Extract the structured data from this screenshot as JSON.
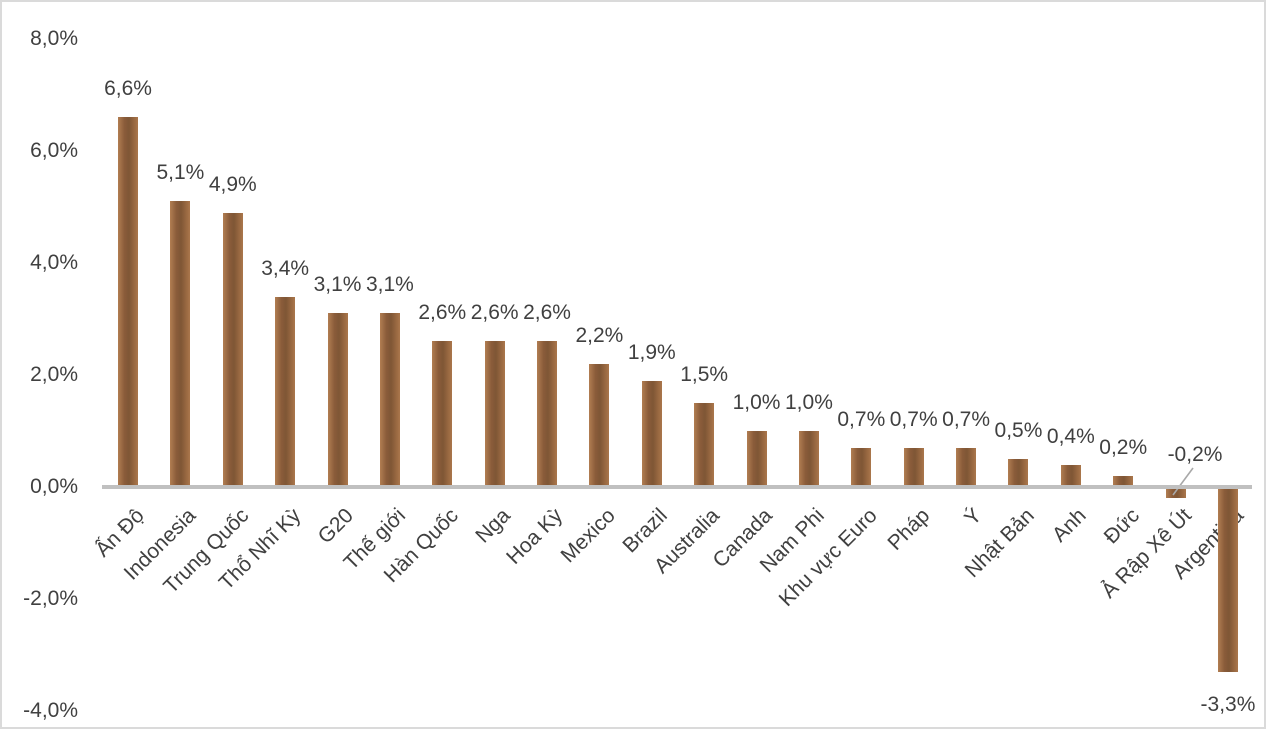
{
  "chart_data": {
    "type": "bar",
    "title": "",
    "xlabel": "",
    "ylabel": "",
    "legend": "none",
    "grid": "off",
    "categories": [
      "Ấn Độ",
      "Indonesia",
      "Trung Quốc",
      "Thổ Nhĩ Kỳ",
      "G20",
      "Thế giới",
      "Hàn Quốc",
      "Nga",
      "Hoa Kỳ",
      "Mexico",
      "Brazil",
      "Australia",
      "Canada",
      "Nam Phi",
      "Khu vực Euro",
      "Pháp",
      "Ý",
      "Nhật Bản",
      "Anh",
      "Đức",
      "Ả Rập Xê Út",
      "Argentina"
    ],
    "values": [
      6.6,
      5.1,
      4.9,
      3.4,
      3.1,
      3.1,
      2.6,
      2.6,
      2.6,
      2.2,
      1.9,
      1.5,
      1.0,
      1.0,
      0.7,
      0.7,
      0.7,
      0.5,
      0.4,
      0.2,
      -0.2,
      -3.3
    ],
    "value_labels": [
      "6,6%",
      "5,1%",
      "4,9%",
      "3,4%",
      "3,1%",
      "3,1%",
      "2,6%",
      "2,6%",
      "2,6%",
      "2,2%",
      "1,9%",
      "1,5%",
      "1,0%",
      "1,0%",
      "0,7%",
      "0,7%",
      "0,7%",
      "0,5%",
      "0,4%",
      "0,2%",
      "-0,2%",
      "-3,3%"
    ],
    "y_ticks": [
      {
        "label": "8,0%",
        "value": 8
      },
      {
        "label": "6,0%",
        "value": 6
      },
      {
        "label": "4,0%",
        "value": 4
      },
      {
        "label": "2,0%",
        "value": 2
      },
      {
        "label": "0,0%",
        "value": 0
      },
      {
        "label": "-2,0%",
        "value": -2
      },
      {
        "label": "-4,0%",
        "value": -4
      }
    ],
    "ylim": [
      -4,
      8
    ],
    "special_labels": {
      "20": "leader-offset",
      "21": "below-bar"
    },
    "colors": {
      "bar_base": "#96663f",
      "bar_gradient": [
        "#b27e52",
        "#8a5c3a",
        "#7f5635",
        "#9c6b43",
        "#ab774c"
      ],
      "axis_line": "#c0c0c0",
      "label_text": "#404040",
      "leader_line": "#a8a8a8",
      "chart_border": "#dadada",
      "background": "#ffffff"
    }
  }
}
